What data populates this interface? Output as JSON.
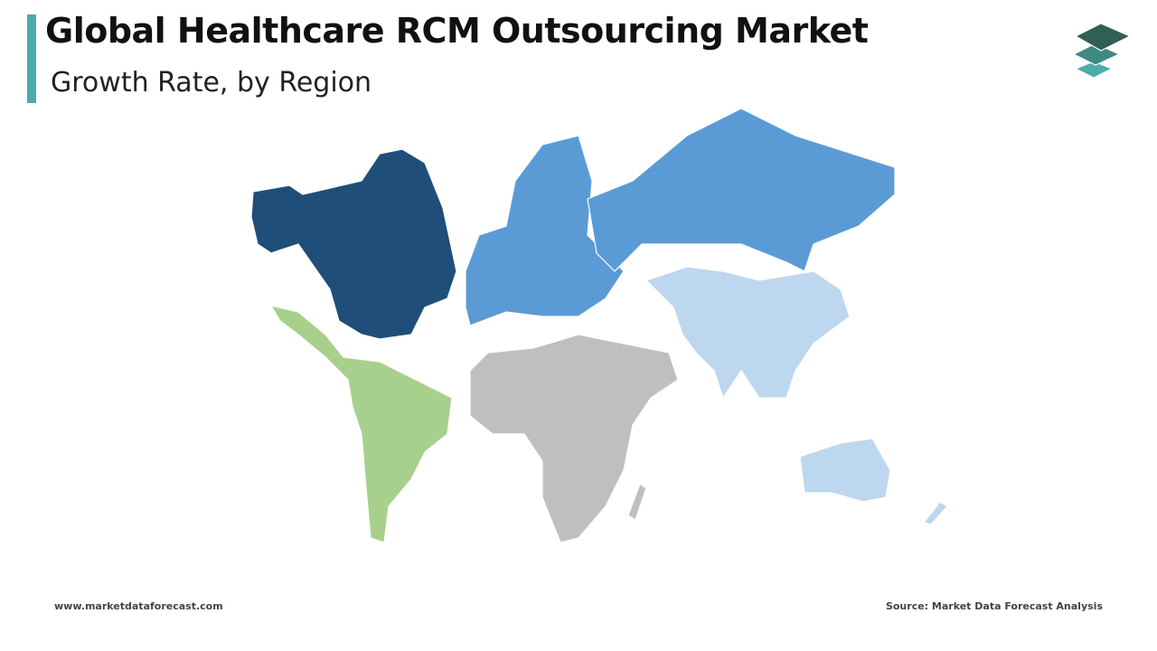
{
  "header": {
    "title": "Global Healthcare RCM Outsourcing Market",
    "subtitle": "Growth Rate, by Region"
  },
  "footer": {
    "website": "www.marketdataforecast.com",
    "source": "Source: Market Data Forecast Analysis"
  }
}
